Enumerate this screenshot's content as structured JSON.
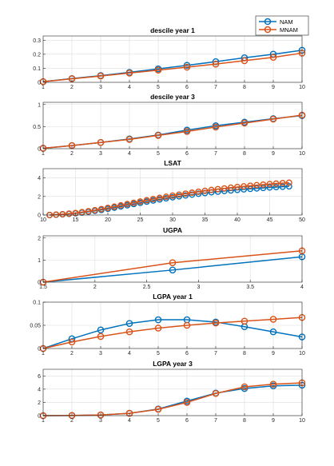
{
  "legend": {
    "entries": [
      {
        "label": "NAM",
        "color": "#0072BD"
      },
      {
        "label": "MNAM",
        "color": "#D95319"
      }
    ],
    "placement": "top-right"
  },
  "chart_data": [
    {
      "type": "line",
      "title": "descile year 1",
      "x": [
        1,
        2,
        3,
        4,
        5,
        6,
        7,
        8,
        9,
        10
      ],
      "xlim": [
        1,
        10
      ],
      "ylim": [
        0,
        0.33
      ],
      "xticks": [
        1,
        2,
        3,
        4,
        5,
        6,
        7,
        8,
        9,
        10
      ],
      "xtick_labels": [
        "1",
        "2",
        "3",
        "4",
        "5",
        "6",
        "7",
        "8",
        "9",
        "10"
      ],
      "yticks": [
        0,
        0.1,
        0.2,
        0.3
      ],
      "ytick_labels": [
        "0",
        "0.1",
        "0.2",
        "0.3"
      ],
      "grid": true,
      "series": [
        {
          "name": "NAM",
          "color": "#0072BD",
          "values": [
            0.005,
            0.027,
            0.048,
            0.071,
            0.096,
            0.121,
            0.147,
            0.175,
            0.2,
            0.228
          ]
        },
        {
          "name": "MNAM",
          "color": "#D95319",
          "values": [
            0.005,
            0.025,
            0.045,
            0.066,
            0.087,
            0.108,
            0.13,
            0.154,
            0.178,
            0.208
          ]
        }
      ]
    },
    {
      "type": "line",
      "title": "descile year 3",
      "x": [
        1,
        2,
        3,
        4,
        5,
        6,
        7,
        8,
        9,
        10
      ],
      "xlim": [
        1,
        10
      ],
      "ylim": [
        0,
        1.05
      ],
      "xticks": [
        1,
        2,
        3,
        4,
        5,
        6,
        7,
        8,
        9,
        10
      ],
      "xtick_labels": [
        "1",
        "2",
        "3",
        "4",
        "5",
        "6",
        "7",
        "8",
        "9",
        "10"
      ],
      "yticks": [
        0,
        0.5,
        1
      ],
      "ytick_labels": [
        "0",
        "0.5",
        "1"
      ],
      "grid": true,
      "series": [
        {
          "name": "NAM",
          "color": "#0072BD",
          "values": [
            0.01,
            0.07,
            0.14,
            0.22,
            0.31,
            0.42,
            0.52,
            0.6,
            0.68,
            0.75
          ]
        },
        {
          "name": "MNAM",
          "color": "#D95319",
          "values": [
            0.01,
            0.07,
            0.14,
            0.21,
            0.3,
            0.39,
            0.49,
            0.58,
            0.67,
            0.76
          ]
        }
      ]
    },
    {
      "type": "line",
      "title": "LSAT",
      "x": [
        11,
        12,
        13,
        14,
        15,
        16,
        17,
        18,
        19,
        20,
        21,
        22,
        23,
        24,
        25,
        26,
        27,
        28,
        29,
        30,
        31,
        32,
        33,
        34,
        35,
        36,
        37,
        38,
        39,
        40,
        41,
        42,
        43,
        44,
        45,
        46,
        47,
        48
      ],
      "xlim": [
        10,
        50
      ],
      "ylim": [
        0,
        5
      ],
      "xticks": [
        10,
        15,
        20,
        25,
        30,
        35,
        40,
        45,
        50
      ],
      "xtick_labels": [
        "10",
        "15",
        "20",
        "25",
        "30",
        "35",
        "40",
        "45",
        "50"
      ],
      "yticks": [
        0,
        2,
        4
      ],
      "ytick_labels": [
        "0",
        "2",
        "4"
      ],
      "grid": true,
      "series": [
        {
          "name": "NAM",
          "color": "#0072BD",
          "values": [
            0.0,
            0.03,
            0.07,
            0.12,
            0.18,
            0.26,
            0.35,
            0.45,
            0.55,
            0.67,
            0.79,
            0.92,
            1.05,
            1.18,
            1.31,
            1.44,
            1.56,
            1.68,
            1.8,
            1.91,
            2.01,
            2.11,
            2.2,
            2.29,
            2.37,
            2.45,
            2.52,
            2.59,
            2.65,
            2.71,
            2.77,
            2.82,
            2.87,
            2.92,
            2.97,
            3.01,
            3.05,
            3.09
          ]
        },
        {
          "name": "MNAM",
          "color": "#D95319",
          "values": [
            0.0,
            0.04,
            0.09,
            0.15,
            0.22,
            0.31,
            0.41,
            0.52,
            0.64,
            0.77,
            0.9,
            1.04,
            1.18,
            1.32,
            1.46,
            1.59,
            1.72,
            1.85,
            1.97,
            2.09,
            2.2,
            2.31,
            2.41,
            2.51,
            2.61,
            2.7,
            2.79,
            2.87,
            2.95,
            3.02,
            3.09,
            3.16,
            3.22,
            3.28,
            3.34,
            3.39,
            3.44,
            3.49
          ]
        }
      ]
    },
    {
      "type": "line",
      "title": "UGPA",
      "x": [
        1.5,
        2.75,
        4
      ],
      "xlim": [
        1.5,
        4
      ],
      "ylim": [
        0,
        2.1
      ],
      "xticks": [
        1.5,
        2,
        2.5,
        3,
        3.5,
        4
      ],
      "xtick_labels": [
        "1.5",
        "2",
        "2.5",
        "3",
        "3.5",
        "4"
      ],
      "yticks": [
        0,
        1,
        2
      ],
      "ytick_labels": [
        "0",
        "1",
        "2"
      ],
      "grid": true,
      "series": [
        {
          "name": "NAM",
          "color": "#0072BD",
          "values": [
            0.0,
            0.55,
            1.15
          ]
        },
        {
          "name": "MNAM",
          "color": "#D95319",
          "values": [
            0.0,
            0.88,
            1.42
          ]
        }
      ]
    },
    {
      "type": "line",
      "title": "LGPA year 1",
      "x": [
        1,
        2,
        3,
        4,
        5,
        6,
        7,
        8,
        9,
        10
      ],
      "xlim": [
        1,
        10
      ],
      "ylim": [
        0,
        0.1
      ],
      "xticks": [
        1,
        2,
        3,
        4,
        5,
        6,
        7,
        8,
        9,
        10
      ],
      "xtick_labels": [
        "1",
        "2",
        "3",
        "4",
        "5",
        "6",
        "7",
        "8",
        "9",
        "10"
      ],
      "yticks": [
        0,
        0.05,
        0.1
      ],
      "ytick_labels": [
        "0",
        "0.05",
        "0.1"
      ],
      "grid": true,
      "series": [
        {
          "name": "NAM",
          "color": "#0072BD",
          "values": [
            0.0,
            0.021,
            0.04,
            0.054,
            0.062,
            0.062,
            0.057,
            0.047,
            0.036,
            0.025
          ]
        },
        {
          "name": "MNAM",
          "color": "#D95319",
          "values": [
            0.0,
            0.014,
            0.026,
            0.036,
            0.044,
            0.05,
            0.055,
            0.059,
            0.063,
            0.067
          ]
        }
      ]
    },
    {
      "type": "line",
      "title": "LGPA year 3",
      "x": [
        1,
        2,
        3,
        4,
        5,
        6,
        7,
        8,
        9,
        10
      ],
      "xlim": [
        1,
        10
      ],
      "ylim": [
        0,
        7
      ],
      "xticks": [
        1,
        2,
        3,
        4,
        5,
        6,
        7,
        8,
        9,
        10
      ],
      "xtick_labels": [
        "1",
        "2",
        "3",
        "4",
        "5",
        "6",
        "7",
        "8",
        "9",
        "10"
      ],
      "yticks": [
        0,
        2,
        4,
        6
      ],
      "ytick_labels": [
        "0",
        "2",
        "4",
        "6"
      ],
      "grid": true,
      "series": [
        {
          "name": "NAM",
          "color": "#0072BD",
          "values": [
            0.0,
            0.02,
            0.1,
            0.35,
            1.0,
            2.2,
            3.4,
            4.1,
            4.5,
            4.6
          ]
        },
        {
          "name": "MNAM",
          "color": "#D95319",
          "values": [
            0.0,
            0.03,
            0.1,
            0.35,
            0.95,
            2.0,
            3.35,
            4.35,
            4.75,
            4.95
          ]
        }
      ]
    }
  ]
}
